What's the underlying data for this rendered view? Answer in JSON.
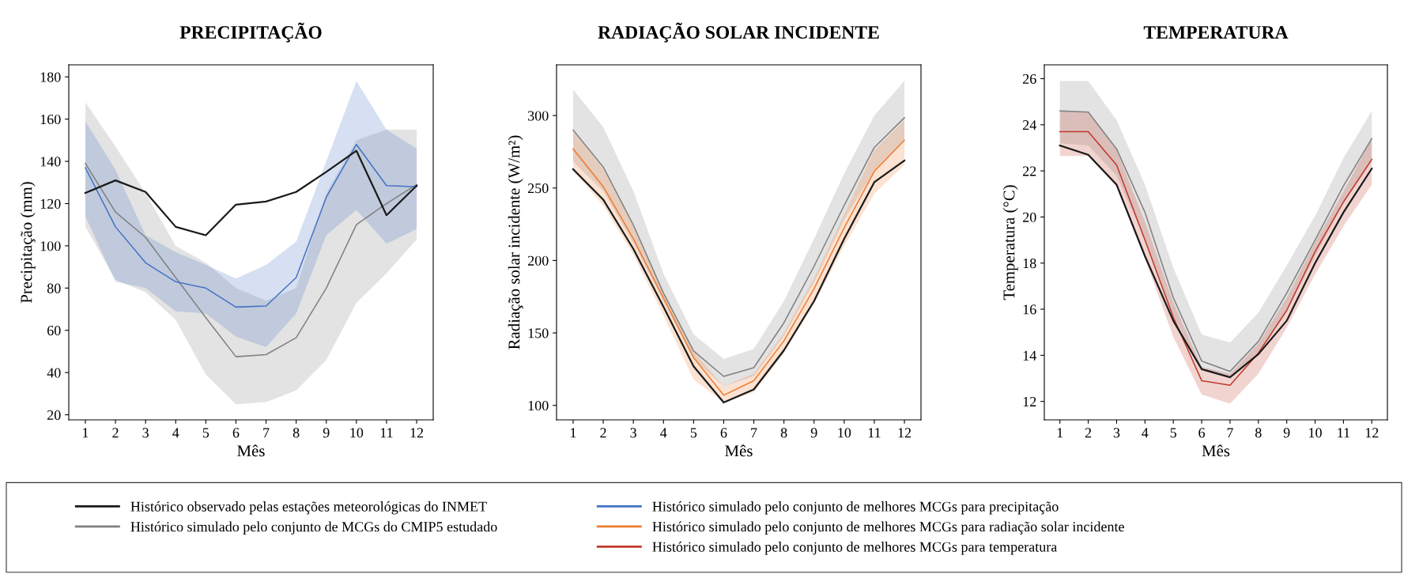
{
  "chart_data": [
    {
      "type": "line",
      "title": "PRECIPITAÇÃO",
      "xlabel": "Mês",
      "ylabel": "Precipitação (mm)",
      "x": [
        1,
        2,
        3,
        4,
        5,
        6,
        7,
        8,
        9,
        10,
        11,
        12
      ],
      "xlim": [
        0.45,
        12.55
      ],
      "xticks": [
        1,
        2,
        3,
        4,
        5,
        6,
        7,
        8,
        9,
        10,
        11,
        12
      ],
      "ylim": [
        17.6,
        185.7
      ],
      "yticks": [
        20,
        40,
        60,
        80,
        100,
        120,
        140,
        160,
        180
      ],
      "grid": false,
      "legend": "bottom",
      "line_style": "solid",
      "marker": "none",
      "series": [
        {
          "name": "Histórico simulado pelo conjunto de MCGs do CMIP5 estudado",
          "color": "#808080",
          "values": [
            139,
            116,
            104,
            85,
            66,
            47.5,
            48.5,
            56.5,
            80,
            110,
            120,
            129
          ],
          "lower": [
            109,
            84,
            78,
            65,
            39,
            25,
            26,
            31.5,
            46,
            73,
            87,
            103
          ],
          "upper": [
            168,
            147,
            125,
            100,
            92,
            80,
            74,
            80,
            125,
            150,
            155,
            155
          ]
        },
        {
          "name": "Histórico simulado pelo conjunto de melhores MCGs para precipitação",
          "color": "#4472c4",
          "values": [
            137,
            109,
            92,
            83,
            80,
            71,
            71.5,
            85,
            123,
            148,
            128.5,
            128
          ],
          "lower": [
            114,
            83,
            80,
            69,
            68,
            57,
            52,
            68,
            105,
            117,
            101,
            108
          ],
          "upper": [
            159,
            136,
            105,
            97,
            91,
            84.5,
            91,
            102,
            140,
            178,
            155,
            146
          ]
        },
        {
          "name": "Histórico observado pelas estações meteorológicas do INMET",
          "color": "#1a1a1a",
          "values": [
            125,
            131,
            125.5,
            109,
            105,
            119.5,
            121,
            125.5,
            135,
            145,
            114.5,
            128.5
          ]
        }
      ]
    },
    {
      "type": "line",
      "title": "RADIAÇÃO SOLAR INCIDENTE",
      "xlabel": "Mês",
      "ylabel": "Radiação solar incidente (W/m²)",
      "x": [
        1,
        2,
        3,
        4,
        5,
        6,
        7,
        8,
        9,
        10,
        11,
        12
      ],
      "xlim": [
        0.45,
        12.55
      ],
      "xticks": [
        1,
        2,
        3,
        4,
        5,
        6,
        7,
        8,
        9,
        10,
        11,
        12
      ],
      "ylim": [
        90,
        335
      ],
      "yticks": [
        100,
        150,
        200,
        250,
        300
      ],
      "grid": false,
      "line_style": "solid",
      "marker": "none",
      "series": [
        {
          "color": "#808080",
          "values": [
            290,
            264.5,
            224.5,
            177.5,
            137.5,
            120,
            126,
            157,
            196,
            238,
            278,
            298.5
          ],
          "lower": [
            268,
            248,
            212,
            172,
            132,
            113,
            120,
            148,
            185,
            228,
            262,
            283
          ],
          "upper": [
            318,
            292,
            248,
            191,
            149,
            132,
            139,
            172,
            215,
            260,
            300,
            324
          ]
        },
        {
          "name": "Histórico simulado pelo conjunto de melhores MCGs para radiação solar incidente",
          "color": "#ed7d31",
          "values": [
            277,
            251,
            215,
            174,
            133,
            107,
            117,
            144.5,
            180.5,
            222.5,
            261.5,
            283
          ],
          "lower": [
            262,
            238,
            204,
            162,
            118,
            102,
            109,
            136,
            170,
            210,
            246,
            266
          ],
          "upper": [
            290,
            263,
            224,
            178,
            137,
            113,
            122,
            150,
            188,
            232,
            276,
            297
          ]
        },
        {
          "color": "#1a1a1a",
          "values": [
            263,
            242,
            208,
            168,
            127,
            102,
            111,
            138,
            172,
            215,
            254,
            269
          ]
        }
      ]
    },
    {
      "type": "line",
      "title": "TEMPERATURA",
      "xlabel": "Mês",
      "ylabel": "Temperatura (°C)",
      "x": [
        1,
        2,
        3,
        4,
        5,
        6,
        7,
        8,
        9,
        10,
        11,
        12
      ],
      "xlim": [
        0.45,
        12.55
      ],
      "xticks": [
        1,
        2,
        3,
        4,
        5,
        6,
        7,
        8,
        9,
        10,
        11,
        12
      ],
      "ylim": [
        11.2,
        26.6
      ],
      "yticks": [
        12,
        14,
        16,
        18,
        20,
        22,
        24,
        26
      ],
      "grid": false,
      "line_style": "solid",
      "marker": "none",
      "series": [
        {
          "color": "#808080",
          "values": [
            24.6,
            24.55,
            22.95,
            20.2,
            16.5,
            13.75,
            13.3,
            14.6,
            16.7,
            19,
            21.35,
            23.4
          ],
          "lower": [
            23.2,
            23.1,
            21.8,
            19,
            15.7,
            13.4,
            13.1,
            14.1,
            15.9,
            18.3,
            20.6,
            22.4
          ],
          "upper": [
            25.9,
            25.9,
            24.2,
            21.4,
            17.8,
            14.9,
            14.55,
            15.85,
            17.9,
            20.05,
            22.55,
            24.6
          ]
        },
        {
          "name": "Histórico simulado pelo conjunto de melhores MCGs para temperatura",
          "color": "#c0392b",
          "values": [
            23.7,
            23.7,
            22.25,
            19,
            15.65,
            12.9,
            12.7,
            14.1,
            15.95,
            18.5,
            20.65,
            22.5
          ],
          "lower": [
            22.65,
            22.65,
            21.3,
            18.2,
            14.8,
            12.3,
            11.9,
            13.2,
            15.2,
            17.5,
            19.6,
            21.4
          ],
          "upper": [
            24.6,
            24.55,
            22.9,
            19.8,
            16.3,
            13.5,
            13.2,
            14.5,
            16.5,
            18.9,
            21.1,
            23.4
          ]
        },
        {
          "color": "#1a1a1a",
          "values": [
            23.1,
            22.7,
            21.4,
            18.3,
            15.5,
            13.4,
            13.05,
            14.05,
            15.5,
            18,
            20.2,
            22.1
          ]
        }
      ]
    }
  ]
}
